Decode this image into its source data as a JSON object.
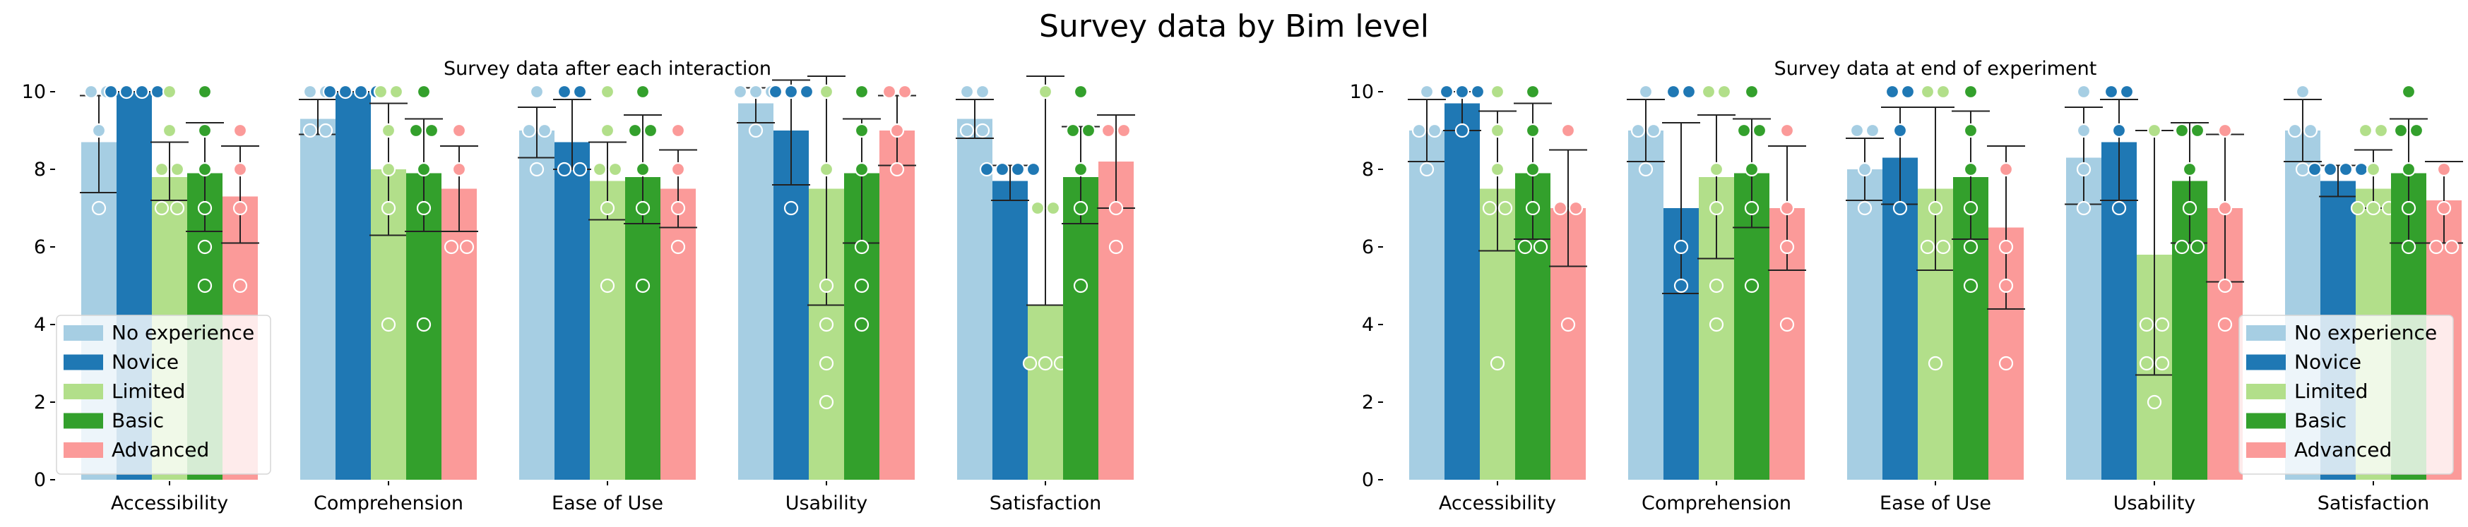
{
  "figure": {
    "title": "Survey data by Bim level"
  },
  "chart_data": [
    {
      "type": "bar",
      "title": "Survey data after each interaction",
      "xlabel": "",
      "ylabel": "",
      "ylim": [
        0,
        10.5
      ],
      "yticks": [
        0,
        2,
        4,
        6,
        8,
        10
      ],
      "categories": [
        "Accessibility",
        "Comprehension",
        "Ease of Use",
        "Usability",
        "Satisfaction"
      ],
      "error_bars": true,
      "legend_position": "lower-left",
      "series": [
        {
          "name": "No experience",
          "color": "#a6cee3",
          "values": [
            8.7,
            9.3,
            9.0,
            9.7,
            9.3
          ],
          "errors": [
            [
              7.4,
              9.9
            ],
            [
              8.9,
              9.8
            ],
            [
              8.3,
              9.6
            ],
            [
              9.2,
              10.1
            ],
            [
              8.8,
              9.8
            ]
          ],
          "points": [
            [
              7,
              9,
              10,
              10
            ],
            [
              9,
              9,
              10,
              10
            ],
            [
              8,
              9,
              9,
              10
            ],
            [
              9,
              10,
              10,
              10
            ],
            [
              9,
              9,
              10,
              10
            ]
          ]
        },
        {
          "name": "Novice",
          "color": "#1f78b4",
          "values": [
            10.0,
            10.0,
            8.7,
            9.0,
            7.7
          ],
          "errors": [
            [
              10.0,
              10.0
            ],
            [
              10.0,
              10.0
            ],
            [
              8.0,
              9.8
            ],
            [
              7.6,
              10.3
            ],
            [
              7.2,
              8.1
            ]
          ],
          "points": [
            [
              10,
              10,
              10,
              10
            ],
            [
              10,
              10,
              10,
              10
            ],
            [
              8,
              8,
              10,
              10
            ],
            [
              7,
              10,
              10,
              10
            ],
            [
              8,
              8,
              8,
              8
            ]
          ]
        },
        {
          "name": "Limited",
          "color": "#b2df8a",
          "values": [
            7.8,
            8.0,
            7.7,
            7.5,
            4.5
          ],
          "errors": [
            [
              7.2,
              8.7
            ],
            [
              6.3,
              9.7
            ],
            [
              6.7,
              8.7
            ],
            [
              4.5,
              10.4
            ],
            [
              4.5,
              10.4
            ]
          ],
          "points": [
            [
              7,
              7,
              8,
              8,
              9,
              10
            ],
            [
              4,
              7,
              8,
              9,
              10,
              10
            ],
            [
              5,
              7,
              8,
              8,
              9,
              10
            ],
            [
              2,
              3,
              4,
              5,
              8,
              10
            ],
            [
              3,
              3,
              3,
              7,
              7,
              10
            ]
          ]
        },
        {
          "name": "Basic",
          "color": "#33a02c",
          "values": [
            7.9,
            7.9,
            7.8,
            7.9,
            7.8
          ],
          "errors": [
            [
              6.4,
              9.2
            ],
            [
              6.4,
              9.3
            ],
            [
              6.6,
              9.4
            ],
            [
              6.1,
              9.3
            ],
            [
              6.6,
              9.1
            ]
          ],
          "points": [
            [
              5,
              6,
              7,
              8,
              9,
              10
            ],
            [
              4,
              7,
              8,
              9,
              9,
              10
            ],
            [
              5,
              7,
              8,
              9,
              9,
              10
            ],
            [
              4,
              5,
              6,
              8,
              9,
              10
            ],
            [
              5,
              7,
              8,
              9,
              9,
              10
            ]
          ]
        },
        {
          "name": "Advanced",
          "color": "#fb9a99",
          "values": [
            7.3,
            7.5,
            7.5,
            9.0,
            8.2
          ],
          "errors": [
            [
              6.1,
              8.6
            ],
            [
              6.4,
              8.6
            ],
            [
              6.5,
              8.5
            ],
            [
              8.1,
              9.9
            ],
            [
              7.0,
              9.4
            ]
          ],
          "points": [
            [
              5,
              7,
              8,
              9
            ],
            [
              6,
              6,
              8,
              9
            ],
            [
              6,
              7,
              8,
              9
            ],
            [
              8,
              9,
              10,
              10
            ],
            [
              6,
              7,
              9,
              9
            ]
          ]
        }
      ]
    },
    {
      "type": "bar",
      "title": "Survey data at end of experiment",
      "xlabel": "",
      "ylabel": "",
      "ylim": [
        0,
        10.5
      ],
      "yticks": [
        0,
        2,
        4,
        6,
        8,
        10
      ],
      "categories": [
        "Accessibility",
        "Comprehension",
        "Ease of Use",
        "Usability",
        "Satisfaction"
      ],
      "error_bars": true,
      "legend_position": "lower-right",
      "series": [
        {
          "name": "No experience",
          "color": "#a6cee3",
          "values": [
            9.0,
            9.0,
            8.0,
            8.3,
            9.0
          ],
          "errors": [
            [
              8.2,
              9.8
            ],
            [
              8.2,
              9.8
            ],
            [
              7.2,
              8.8
            ],
            [
              7.1,
              9.6
            ],
            [
              8.2,
              9.8
            ]
          ],
          "points": [
            [
              8,
              9,
              9,
              10
            ],
            [
              8,
              9,
              9,
              10
            ],
            [
              7,
              8,
              9,
              9
            ],
            [
              7,
              8,
              9,
              10
            ],
            [
              8,
              9,
              9,
              10
            ]
          ]
        },
        {
          "name": "Novice",
          "color": "#1f78b4",
          "values": [
            9.7,
            7.0,
            8.3,
            8.7,
            7.7
          ],
          "errors": [
            [
              9.0,
              10.0
            ],
            [
              4.8,
              9.2
            ],
            [
              7.1,
              9.6
            ],
            [
              7.2,
              9.8
            ],
            [
              7.3,
              8.1
            ]
          ],
          "points": [
            [
              9,
              10,
              10,
              10
            ],
            [
              5,
              6,
              10,
              10
            ],
            [
              7,
              9,
              10,
              10
            ],
            [
              7,
              9,
              10,
              10
            ],
            [
              8,
              8,
              8,
              8
            ]
          ]
        },
        {
          "name": "Limited",
          "color": "#b2df8a",
          "values": [
            7.5,
            7.8,
            7.5,
            5.8,
            7.5
          ],
          "errors": [
            [
              5.9,
              9.5
            ],
            [
              5.7,
              9.4
            ],
            [
              5.4,
              9.6
            ],
            [
              2.7,
              9.0
            ],
            [
              7.0,
              8.5
            ]
          ],
          "points": [
            [
              3,
              7,
              7,
              8,
              9,
              10
            ],
            [
              4,
              5,
              7,
              8,
              10,
              10
            ],
            [
              3,
              6,
              6,
              7,
              10,
              10
            ],
            [
              2,
              3,
              3,
              4,
              4,
              9
            ],
            [
              7,
              7,
              7,
              8,
              9,
              9
            ]
          ]
        },
        {
          "name": "Basic",
          "color": "#33a02c",
          "values": [
            7.9,
            7.9,
            7.8,
            7.7,
            7.9
          ],
          "errors": [
            [
              6.2,
              9.7
            ],
            [
              6.5,
              9.3
            ],
            [
              6.2,
              9.5
            ],
            [
              6.1,
              9.2
            ],
            [
              6.1,
              9.3
            ]
          ],
          "points": [
            [
              6,
              6,
              7,
              8,
              9,
              10
            ],
            [
              5,
              7,
              8,
              9,
              9,
              10
            ],
            [
              5,
              6,
              7,
              8,
              9,
              10
            ],
            [
              6,
              6,
              7,
              8,
              9,
              9
            ],
            [
              6,
              7,
              8,
              9,
              9,
              10
            ]
          ]
        },
        {
          "name": "Advanced",
          "color": "#fb9a99",
          "values": [
            7.0,
            7.0,
            6.5,
            7.0,
            7.2
          ],
          "errors": [
            [
              5.5,
              8.5
            ],
            [
              5.4,
              8.6
            ],
            [
              4.4,
              8.6
            ],
            [
              5.1,
              8.9
            ],
            [
              6.1,
              8.2
            ]
          ],
          "points": [
            [
              4,
              7,
              7,
              9
            ],
            [
              4,
              6,
              7,
              9
            ],
            [
              3,
              5,
              6,
              8
            ],
            [
              4,
              5,
              7,
              9
            ],
            [
              6,
              6,
              7,
              8
            ]
          ]
        }
      ]
    }
  ]
}
